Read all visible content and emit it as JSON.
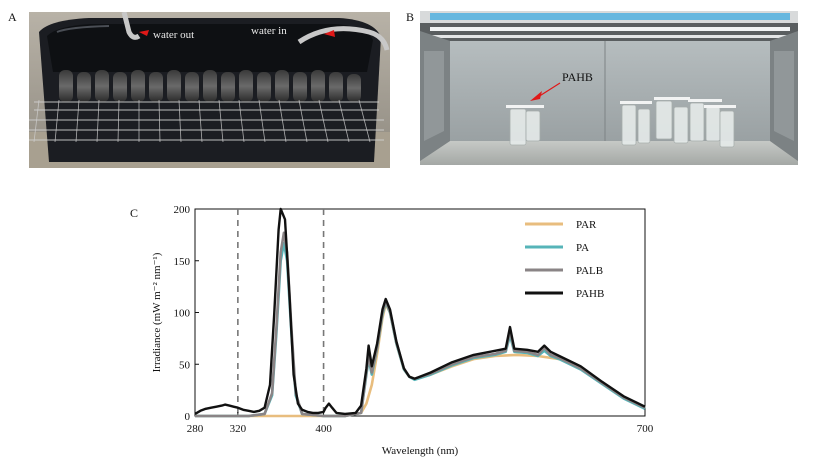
{
  "panels": {
    "a": {
      "letter": "A",
      "label_out": "water out",
      "label_in": "water in"
    },
    "b": {
      "letter": "B",
      "label": "PAHB"
    },
    "c": {
      "letter": "C"
    }
  },
  "colors": {
    "PAR": "#e8bd7e",
    "PA": "#56b4b8",
    "PALB": "#8a8486",
    "PAHB": "#111111",
    "dashed": "#777777"
  },
  "chart_data": {
    "type": "line",
    "xlabel": "Wavelength (nm)",
    "ylabel": "Irradiance (mW m⁻² nm⁻¹)",
    "xlim": [
      280,
      700
    ],
    "ylim": [
      0,
      200
    ],
    "xticks": [
      280,
      320,
      400,
      700
    ],
    "yticks": [
      0,
      50,
      100,
      150,
      200
    ],
    "vlines": [
      320,
      400
    ],
    "legend_position": "top-right",
    "series": [
      {
        "name": "PAR",
        "color": "#e8bd7e",
        "points": [
          [
            280,
            0
          ],
          [
            330,
            0
          ],
          [
            360,
            0
          ],
          [
            380,
            0
          ],
          [
            400,
            0
          ],
          [
            420,
            0
          ],
          [
            435,
            3
          ],
          [
            440,
            12
          ],
          [
            445,
            30
          ],
          [
            450,
            60
          ],
          [
            455,
            95
          ],
          [
            458,
            108
          ],
          [
            462,
            100
          ],
          [
            468,
            70
          ],
          [
            475,
            45
          ],
          [
            480,
            38
          ],
          [
            485,
            36
          ],
          [
            500,
            40
          ],
          [
            520,
            48
          ],
          [
            540,
            55
          ],
          [
            560,
            58
          ],
          [
            580,
            59
          ],
          [
            600,
            58
          ],
          [
            620,
            55
          ],
          [
            640,
            46
          ],
          [
            660,
            32
          ],
          [
            680,
            18
          ],
          [
            700,
            8
          ]
        ]
      },
      {
        "name": "PA",
        "color": "#56b4b8",
        "points": [
          [
            280,
            0
          ],
          [
            330,
            0
          ],
          [
            345,
            2
          ],
          [
            352,
            20
          ],
          [
            356,
            80
          ],
          [
            360,
            150
          ],
          [
            363,
            167
          ],
          [
            366,
            150
          ],
          [
            370,
            80
          ],
          [
            374,
            20
          ],
          [
            380,
            2
          ],
          [
            400,
            0
          ],
          [
            420,
            0
          ],
          [
            435,
            3
          ],
          [
            440,
            40
          ],
          [
            442,
            55
          ],
          [
            445,
            40
          ],
          [
            450,
            65
          ],
          [
            455,
            98
          ],
          [
            458,
            110
          ],
          [
            462,
            100
          ],
          [
            468,
            70
          ],
          [
            475,
            45
          ],
          [
            480,
            38
          ],
          [
            485,
            35
          ],
          [
            500,
            40
          ],
          [
            520,
            49
          ],
          [
            540,
            56
          ],
          [
            560,
            59
          ],
          [
            570,
            62
          ],
          [
            574,
            78
          ],
          [
            578,
            62
          ],
          [
            590,
            61
          ],
          [
            600,
            58
          ],
          [
            606,
            63
          ],
          [
            612,
            58
          ],
          [
            620,
            55
          ],
          [
            640,
            45
          ],
          [
            660,
            31
          ],
          [
            680,
            17
          ],
          [
            700,
            7
          ]
        ]
      },
      {
        "name": "PALB",
        "color": "#8a8486",
        "points": [
          [
            280,
            0
          ],
          [
            330,
            0
          ],
          [
            345,
            2
          ],
          [
            352,
            22
          ],
          [
            356,
            85
          ],
          [
            360,
            158
          ],
          [
            363,
            177
          ],
          [
            366,
            158
          ],
          [
            370,
            85
          ],
          [
            374,
            22
          ],
          [
            380,
            2
          ],
          [
            400,
            0
          ],
          [
            420,
            0
          ],
          [
            435,
            3
          ],
          [
            440,
            42
          ],
          [
            442,
            58
          ],
          [
            445,
            42
          ],
          [
            450,
            66
          ],
          [
            455,
            100
          ],
          [
            458,
            111
          ],
          [
            462,
            101
          ],
          [
            468,
            71
          ],
          [
            475,
            46
          ],
          [
            480,
            38
          ],
          [
            485,
            36
          ],
          [
            500,
            41
          ],
          [
            520,
            50
          ],
          [
            540,
            57
          ],
          [
            560,
            60
          ],
          [
            570,
            63
          ],
          [
            574,
            82
          ],
          [
            578,
            63
          ],
          [
            590,
            62
          ],
          [
            600,
            59
          ],
          [
            606,
            66
          ],
          [
            612,
            59
          ],
          [
            620,
            56
          ],
          [
            640,
            46
          ],
          [
            660,
            32
          ],
          [
            680,
            18
          ],
          [
            700,
            8
          ]
        ]
      },
      {
        "name": "PAHB",
        "color": "#111111",
        "points": [
          [
            280,
            2
          ],
          [
            285,
            5
          ],
          [
            290,
            7
          ],
          [
            295,
            8
          ],
          [
            300,
            9
          ],
          [
            305,
            10
          ],
          [
            308,
            11
          ],
          [
            312,
            10
          ],
          [
            316,
            9
          ],
          [
            320,
            8
          ],
          [
            325,
            6
          ],
          [
            330,
            5
          ],
          [
            335,
            4
          ],
          [
            340,
            5
          ],
          [
            345,
            8
          ],
          [
            350,
            30
          ],
          [
            354,
            100
          ],
          [
            358,
            180
          ],
          [
            360,
            200
          ],
          [
            364,
            190
          ],
          [
            368,
            120
          ],
          [
            372,
            40
          ],
          [
            376,
            12
          ],
          [
            380,
            6
          ],
          [
            385,
            4
          ],
          [
            390,
            3
          ],
          [
            395,
            3
          ],
          [
            400,
            4
          ],
          [
            402,
            8
          ],
          [
            405,
            12
          ],
          [
            408,
            8
          ],
          [
            412,
            3
          ],
          [
            420,
            2
          ],
          [
            430,
            3
          ],
          [
            435,
            10
          ],
          [
            440,
            46
          ],
          [
            442,
            68
          ],
          [
            445,
            48
          ],
          [
            450,
            70
          ],
          [
            455,
            103
          ],
          [
            458,
            113
          ],
          [
            462,
            103
          ],
          [
            468,
            72
          ],
          [
            475,
            46
          ],
          [
            480,
            38
          ],
          [
            485,
            36
          ],
          [
            500,
            42
          ],
          [
            520,
            52
          ],
          [
            540,
            59
          ],
          [
            560,
            63
          ],
          [
            570,
            65
          ],
          [
            574,
            86
          ],
          [
            578,
            65
          ],
          [
            590,
            64
          ],
          [
            600,
            62
          ],
          [
            606,
            68
          ],
          [
            612,
            62
          ],
          [
            620,
            58
          ],
          [
            640,
            48
          ],
          [
            660,
            33
          ],
          [
            680,
            19
          ],
          [
            700,
            9
          ]
        ]
      }
    ]
  }
}
